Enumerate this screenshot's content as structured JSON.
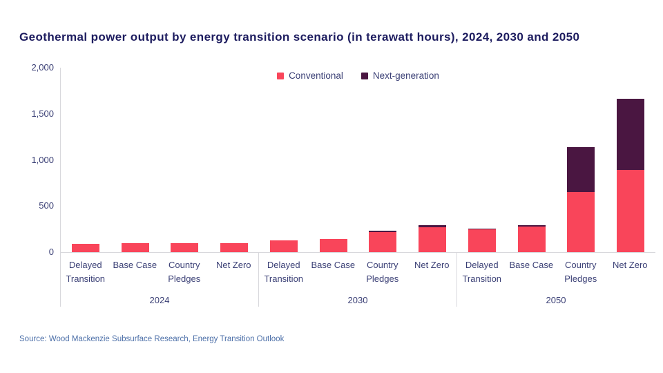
{
  "title": "Geothermal power output by energy transition scenario (in terawatt hours), 2024, 2030 and 2050",
  "source": "Source: Wood Mackenzie Subsurface Research, Energy Transition Outlook",
  "legend": {
    "items": [
      {
        "label": "Conventional",
        "color": "#F9455A"
      },
      {
        "label": "Next-generation",
        "color": "#4A1641"
      }
    ]
  },
  "y_axis": {
    "tick_labels_top_to_bottom": [
      "2,000",
      "1,500",
      "1,000",
      "500",
      "0"
    ],
    "max": 2000
  },
  "colors": {
    "conventional": "#F9455A",
    "next_generation": "#4A1641",
    "title_text": "#1D1C5F",
    "axis_text": "#3A3F75",
    "source_text": "#4C6FA8",
    "axis_line": "#D8D8DC",
    "background": "#FFFFFF"
  },
  "chart_data": {
    "type": "bar",
    "stacked": true,
    "unit": "terawatt hours",
    "title": "Geothermal power output by energy transition scenario (in terawatt hours), 2024, 2030 and 2050",
    "ylim": [
      0,
      2000
    ],
    "y_ticks": [
      0,
      500,
      1000,
      1500,
      2000
    ],
    "grid": false,
    "legend_position": "top-center",
    "series_names": [
      "Conventional",
      "Next-generation"
    ],
    "groups": [
      {
        "year": "2024",
        "categories": [
          "Delayed Transition",
          "Base Case",
          "Country Pledges",
          "Net Zero"
        ],
        "series": [
          {
            "name": "Conventional",
            "values": [
              90,
              100,
              100,
              100
            ]
          },
          {
            "name": "Next-generation",
            "values": [
              0,
              0,
              0,
              0
            ]
          }
        ]
      },
      {
        "year": "2030",
        "categories": [
          "Delayed Transition",
          "Base Case",
          "Country Pledges",
          "Net Zero"
        ],
        "series": [
          {
            "name": "Conventional",
            "values": [
              130,
              140,
              215,
              270
            ]
          },
          {
            "name": "Next-generation",
            "values": [
              0,
              0,
              15,
              20
            ]
          }
        ]
      },
      {
        "year": "2050",
        "categories": [
          "Delayed Transition",
          "Base Case",
          "Country Pledges",
          "Net Zero"
        ],
        "series": [
          {
            "name": "Conventional",
            "values": [
              245,
              280,
              650,
              895
            ]
          },
          {
            "name": "Next-generation",
            "values": [
              10,
              15,
              490,
              765
            ]
          }
        ]
      }
    ]
  }
}
